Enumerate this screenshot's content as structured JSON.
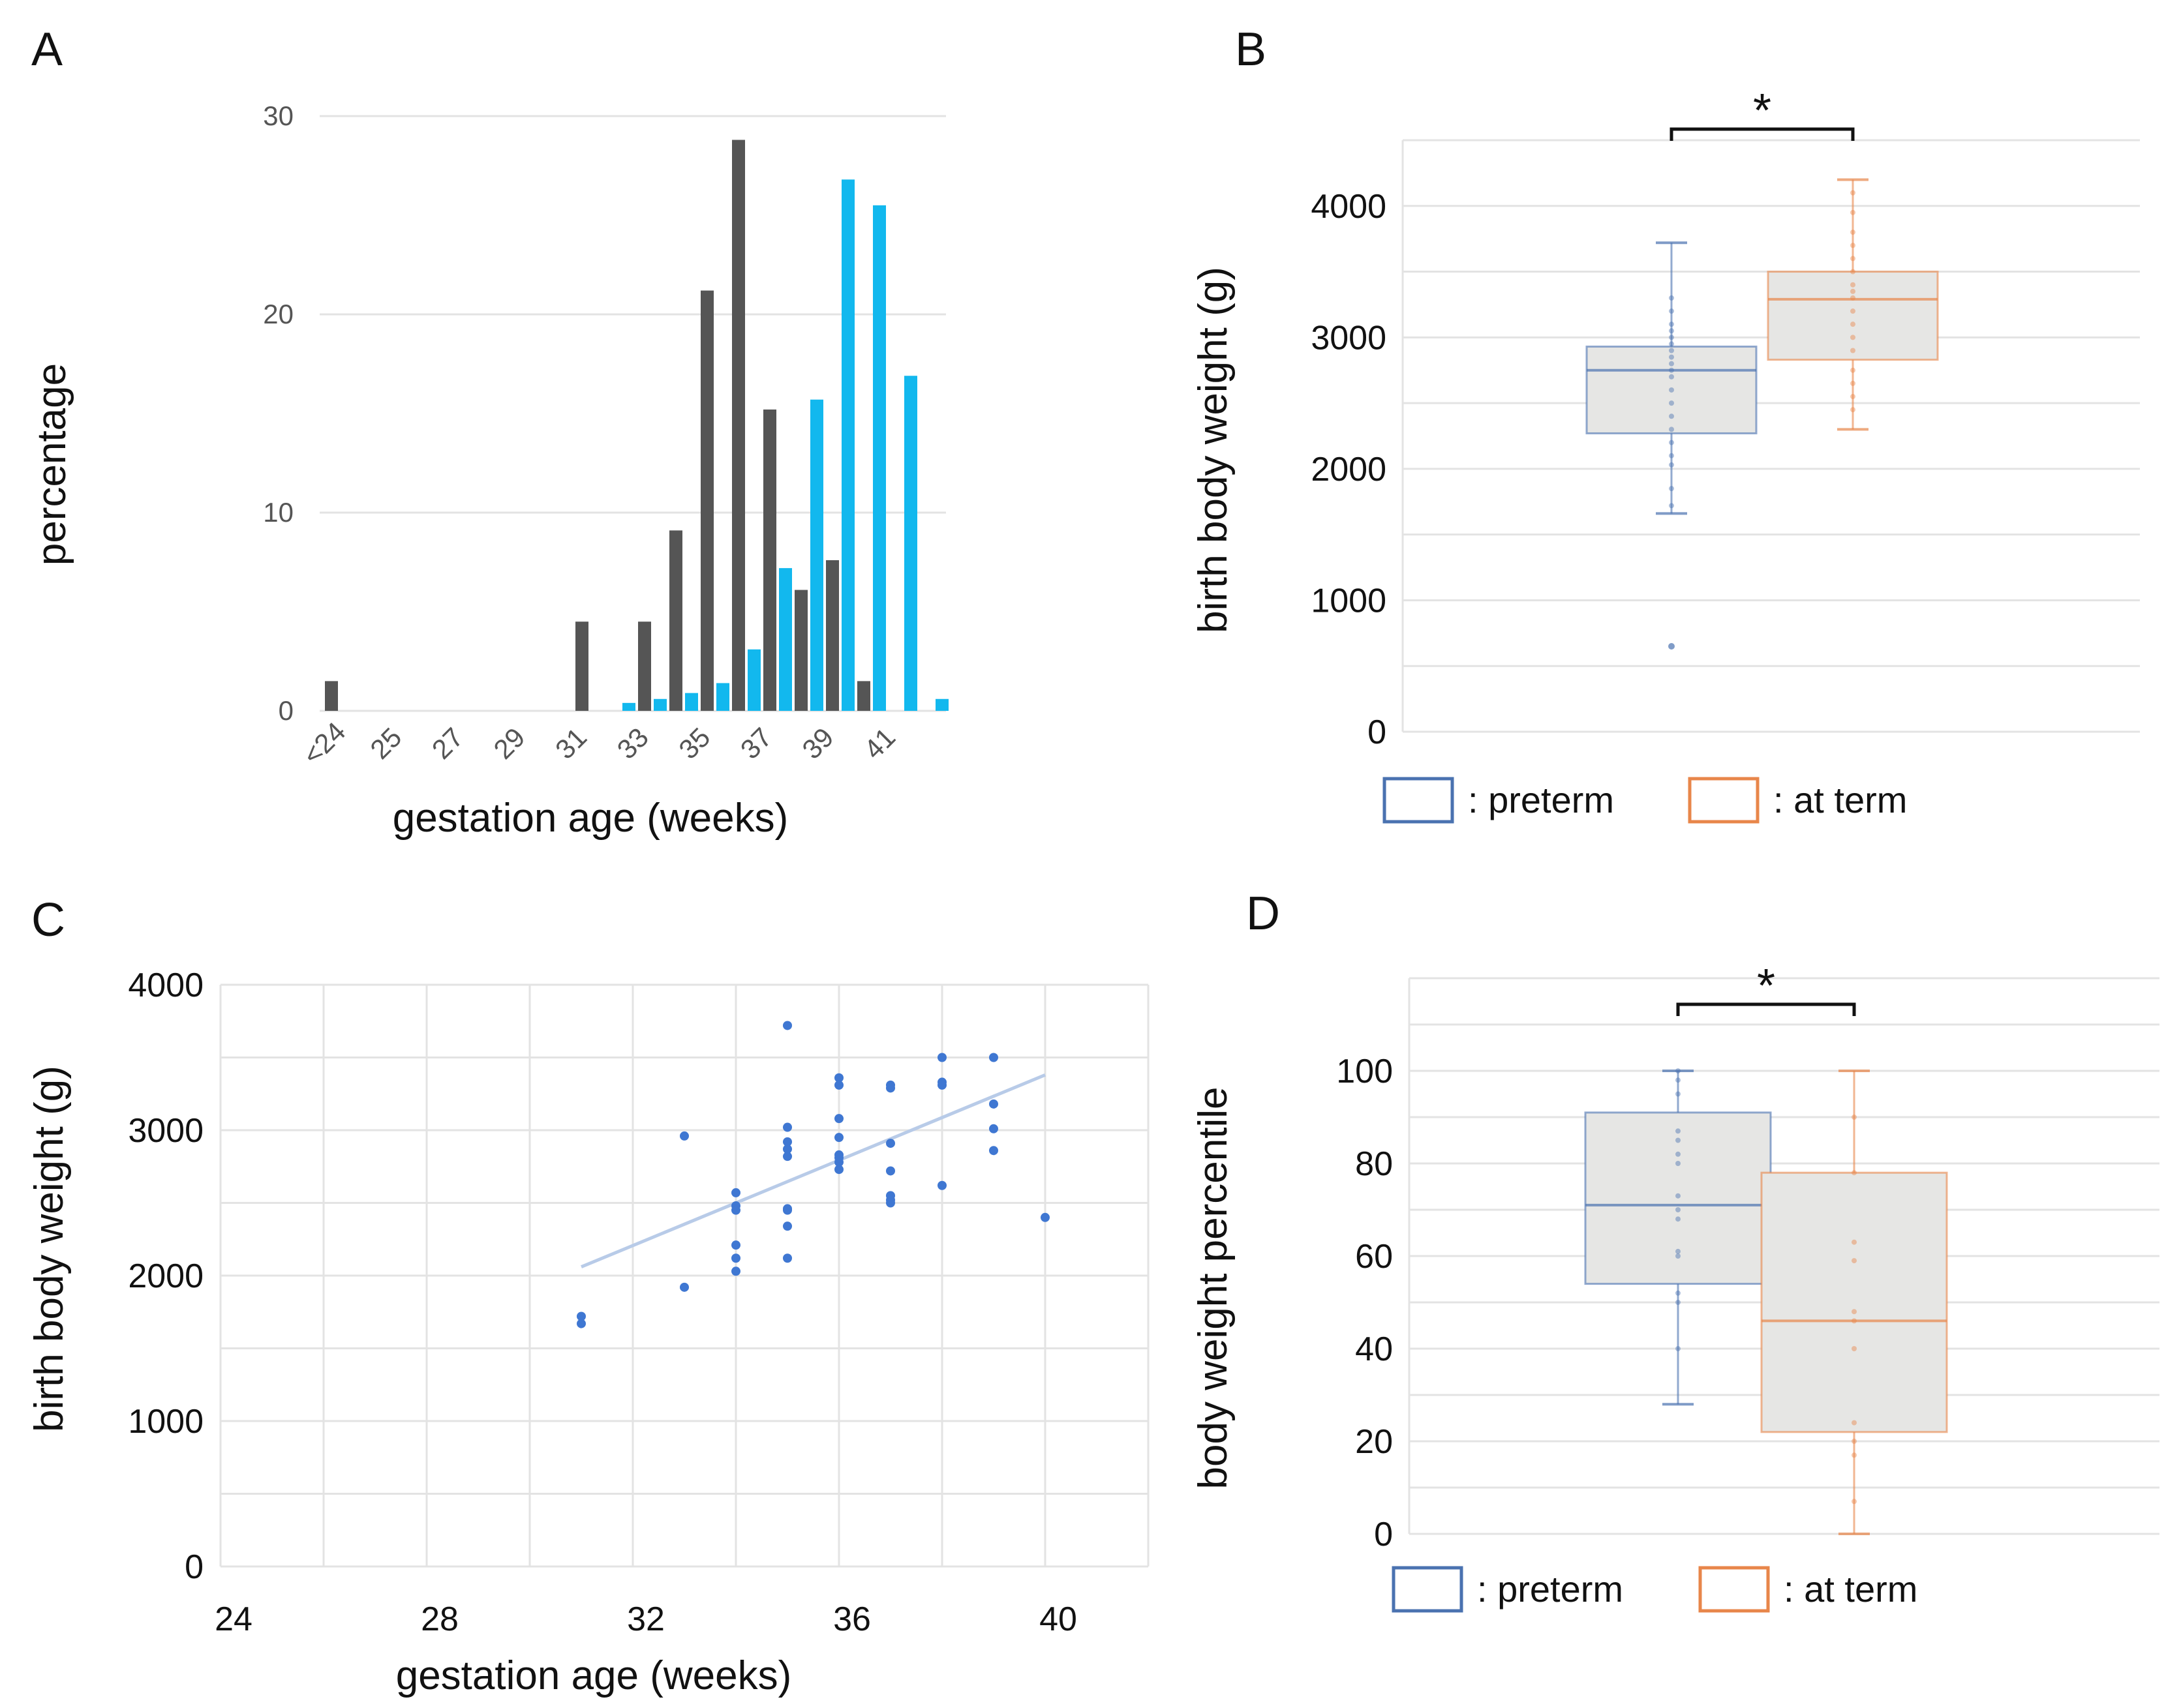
{
  "colors": {
    "preterm_bar": "#555555",
    "term_bar": "#12b8ee",
    "preterm_box": "#4a72b0",
    "term_box": "#e8864a",
    "box_fill": "#e6e6e4",
    "scatter": "#3f77d2",
    "trend": "#b8cbe8",
    "grid": "#e3e3e3"
  },
  "panels": {
    "a": "A",
    "b": "B",
    "c": "C",
    "d": "D"
  },
  "chart_data": [
    {
      "id": "A",
      "type": "bar",
      "xlabel": "gestation age (weeks)",
      "ylabel": "percentage",
      "ylim": [
        0,
        30
      ],
      "yticks": [
        "0",
        "10",
        "20",
        "30"
      ],
      "xtick_labels": [
        "<24",
        "25",
        "27",
        "29",
        "31",
        "33",
        "35",
        "37",
        "39",
        "41"
      ],
      "categories": [
        "<24",
        "24",
        "25",
        "26",
        "27",
        "28",
        "29",
        "30",
        "31",
        "32",
        "33",
        "34",
        "35",
        "36",
        "37",
        "38",
        "39",
        "40",
        "41",
        "42"
      ],
      "series": [
        {
          "name": "preterm",
          "values": [
            1.5,
            0,
            0,
            0,
            0,
            0,
            0,
            0,
            4.5,
            0,
            4.5,
            9.1,
            21.2,
            28.8,
            15.2,
            6.1,
            7.6,
            1.5,
            0,
            0
          ]
        },
        {
          "name": "at term",
          "values": [
            0,
            0,
            0,
            0,
            0,
            0,
            0,
            0,
            0,
            0.4,
            0.6,
            0.9,
            1.4,
            3.1,
            7.2,
            15.7,
            26.8,
            25.5,
            16.9,
            0.6
          ]
        }
      ]
    },
    {
      "id": "B",
      "type": "box",
      "ylabel": "birth body weight (g)",
      "ylim": [
        0,
        4500
      ],
      "yticks": [
        "0",
        "1000",
        "2000",
        "3000",
        "4000"
      ],
      "significance": "*",
      "legend": [
        ": preterm",
        ": at term"
      ],
      "series": [
        {
          "name": "preterm",
          "whisker_low": 1660,
          "q1": 2270,
          "median": 2750,
          "q3": 2930,
          "whisker_high": 3720,
          "outliers": [
            650
          ],
          "points": [
            1720,
            1850,
            2030,
            2100,
            2200,
            2300,
            2400,
            2500,
            2600,
            2700,
            2750,
            2800,
            2850,
            2900,
            2950,
            3000,
            3050,
            3100,
            3200,
            3300
          ]
        },
        {
          "name": "at term",
          "whisker_low": 2300,
          "q1": 2830,
          "median": 3290,
          "q3": 3500,
          "whisker_high": 4200,
          "outliers": [],
          "points": [
            2450,
            2550,
            2650,
            2750,
            2900,
            3000,
            3100,
            3200,
            3300,
            3350,
            3400,
            3500,
            3600,
            3700,
            3800,
            3950,
            4100
          ]
        }
      ]
    },
    {
      "id": "C",
      "type": "scatter",
      "xlabel": "gestation age (weeks)",
      "ylabel": "birth body weight (g)",
      "xlim": [
        24,
        42
      ],
      "ylim": [
        0,
        4000
      ],
      "xticks": [
        "24",
        "28",
        "32",
        "36",
        "40"
      ],
      "yticks": [
        "0",
        "1000",
        "2000",
        "3000",
        "4000"
      ],
      "x": [
        31,
        31,
        33,
        33,
        34,
        34,
        34,
        34,
        34,
        34,
        35,
        35,
        35,
        35,
        35,
        35,
        35,
        35,
        35,
        36,
        36,
        36,
        36,
        36,
        36,
        36,
        36,
        37,
        37,
        37,
        37,
        37,
        37,
        37,
        38,
        38,
        38,
        38,
        39,
        39,
        39,
        39,
        40
      ],
      "y": [
        1720,
        1670,
        2960,
        1920,
        2570,
        2480,
        2210,
        2120,
        2030,
        2450,
        3720,
        3020,
        2920,
        2870,
        2820,
        2450,
        2340,
        2120,
        2460,
        3360,
        3310,
        3080,
        2950,
        2830,
        2780,
        2730,
        2810,
        3310,
        3290,
        2910,
        2720,
        2550,
        2520,
        2500,
        3500,
        3330,
        3310,
        2620,
        3500,
        3180,
        3010,
        2860,
        2400
      ],
      "trend": {
        "x": [
          31,
          40
        ],
        "y": [
          2060,
          3380
        ]
      }
    },
    {
      "id": "D",
      "type": "box",
      "ylabel": "body weight percentile",
      "ylim": [
        0,
        120
      ],
      "yticks": [
        "0",
        "20",
        "40",
        "60",
        "80",
        "100"
      ],
      "significance": "*",
      "legend": [
        ": preterm",
        ": at term"
      ],
      "series": [
        {
          "name": "preterm",
          "whisker_low": 28,
          "q1": 54,
          "median": 71,
          "q3": 91,
          "whisker_high": 100,
          "outliers": [],
          "points": [
            40,
            50,
            52,
            60,
            61,
            68,
            70,
            73,
            80,
            82,
            85,
            87,
            95,
            98,
            100
          ]
        },
        {
          "name": "at term",
          "whisker_low": 0,
          "q1": 22,
          "median": 46,
          "q3": 78,
          "whisker_high": 100,
          "outliers": [],
          "points": [
            7,
            17,
            20,
            24,
            40,
            46,
            48,
            59,
            63,
            78,
            90
          ]
        }
      ]
    }
  ]
}
